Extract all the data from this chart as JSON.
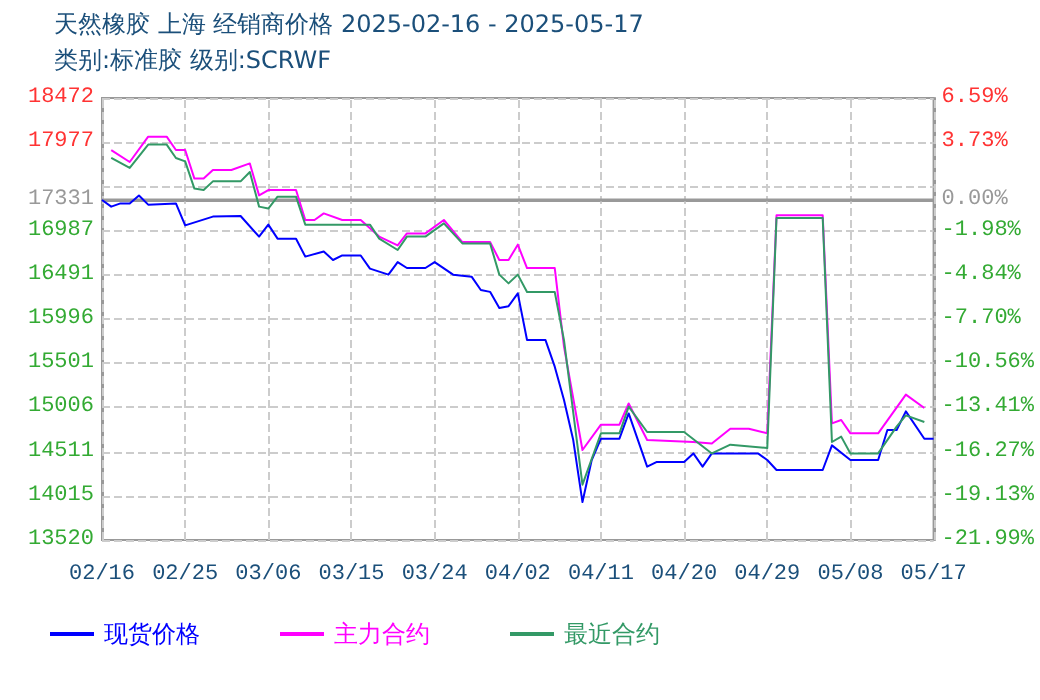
{
  "chart_data": {
    "type": "line",
    "title": "天然橡胶 上海 经销商价格 2025-02-16 - 2025-05-17",
    "subtitle": "类别:标准胶 级别:SCRWF",
    "xlim": [
      "2025-02-16",
      "2025-05-17"
    ],
    "xticks": [
      {
        "value": "2025-02-16",
        "label": "02/16"
      },
      {
        "value": "2025-02-25",
        "label": "02/25"
      },
      {
        "value": "2025-03-06",
        "label": "03/06"
      },
      {
        "value": "2025-03-15",
        "label": "03/15"
      },
      {
        "value": "2025-03-24",
        "label": "03/24"
      },
      {
        "value": "2025-04-02",
        "label": "04/02"
      },
      {
        "value": "2025-04-11",
        "label": "04/11"
      },
      {
        "value": "2025-04-20",
        "label": "04/20"
      },
      {
        "value": "2025-04-29",
        "label": "04/29"
      },
      {
        "value": "2025-05-08",
        "label": "05/08"
      },
      {
        "value": "2025-05-17",
        "label": "05/17"
      }
    ],
    "ylim": [
      13520,
      18472
    ],
    "yticks": [
      13520,
      14015,
      14511,
      15006,
      15501,
      15996,
      16491,
      16987,
      17331,
      {
        "value": 17482,
        "label": null
      },
      17977,
      18472
    ],
    "y2lim": [
      -21.99,
      6.59
    ],
    "y2ticks": [
      {
        "value": -21.99,
        "label": "-21.99%"
      },
      {
        "value": -19.13,
        "label": "-19.13%"
      },
      {
        "value": -16.27,
        "label": "-16.27%"
      },
      {
        "value": -13.41,
        "label": "-13.41%"
      },
      {
        "value": -10.56,
        "label": "-10.56%"
      },
      {
        "value": -7.7,
        "label": "-7.70%"
      },
      {
        "value": -4.84,
        "label": "-4.84%"
      },
      {
        "value": -1.98,
        "label": "-1.98%"
      },
      {
        "value": 0,
        "label": "0.00%"
      },
      {
        "value": 3.73,
        "label": "3.73%"
      },
      {
        "value": 6.59,
        "label": "6.59%"
      }
    ],
    "ref_lines": [
      {
        "axis": "y",
        "value": 17331,
        "color": "#999999"
      }
    ],
    "grid": true,
    "legend": "bottom",
    "marker": "none",
    "line_style": "solid",
    "series": [
      {
        "name": "现货价格",
        "color": "#0000ff",
        "x": [
          "2025-02-16",
          "2025-02-17",
          "2025-02-18",
          "2025-02-19",
          "2025-02-20",
          "2025-02-21",
          "2025-02-24",
          "2025-02-25",
          "2025-02-28",
          "2025-03-03",
          "2025-03-05",
          "2025-03-06",
          "2025-03-07",
          "2025-03-09",
          "2025-03-10",
          "2025-03-12",
          "2025-03-13",
          "2025-03-14",
          "2025-03-16",
          "2025-03-17",
          "2025-03-19",
          "2025-03-20",
          "2025-03-21",
          "2025-03-23",
          "2025-03-24",
          "2025-03-26",
          "2025-03-28",
          "2025-03-29",
          "2025-03-30",
          "2025-03-31",
          "2025-04-01",
          "2025-04-02",
          "2025-04-03",
          "2025-04-05",
          "2025-04-06",
          "2025-04-07",
          "2025-04-08",
          "2025-04-09",
          "2025-04-10",
          "2025-04-11",
          "2025-04-13",
          "2025-04-14",
          "2025-04-16",
          "2025-04-17",
          "2025-04-20",
          "2025-04-21",
          "2025-04-22",
          "2025-04-23",
          "2025-04-28",
          "2025-04-29",
          "2025-04-30",
          "2025-05-05",
          "2025-05-06",
          "2025-05-08",
          "2025-05-11",
          "2025-05-12",
          "2025-05-13",
          "2025-05-14",
          "2025-05-16",
          "2025-05-17"
        ],
        "values": [
          17329,
          17255,
          17291,
          17291,
          17380,
          17277,
          17291,
          17045,
          17143,
          17150,
          16919,
          17053,
          16896,
          16896,
          16695,
          16753,
          16657,
          16708,
          16708,
          16560,
          16493,
          16634,
          16567,
          16567,
          16634,
          16493,
          16470,
          16321,
          16300,
          16119,
          16140,
          16283,
          15760,
          15760,
          15462,
          15088,
          14640,
          13945,
          14416,
          14655,
          14655,
          14938,
          14342,
          14393,
          14393,
          14490,
          14342,
          14490,
          14490,
          14416,
          14304,
          14304,
          14580,
          14416,
          14416,
          14752,
          14752,
          14961,
          14655,
          14655
        ]
      },
      {
        "name": "主力合约",
        "color": "#ff00ff",
        "x": [
          "2025-02-17",
          "2025-02-19",
          "2025-02-21",
          "2025-02-23",
          "2025-02-24",
          "2025-02-25",
          "2025-02-26",
          "2025-02-27",
          "2025-02-28",
          "2025-03-02",
          "2025-03-04",
          "2025-03-05",
          "2025-03-06",
          "2025-03-09",
          "2025-03-10",
          "2025-03-11",
          "2025-03-12",
          "2025-03-14",
          "2025-03-16",
          "2025-03-18",
          "2025-03-20",
          "2025-03-21",
          "2025-03-23",
          "2025-03-25",
          "2025-03-27",
          "2025-03-30",
          "2025-03-31",
          "2025-04-01",
          "2025-04-02",
          "2025-04-03",
          "2025-04-04",
          "2025-04-06",
          "2025-04-07",
          "2025-04-09",
          "2025-04-11",
          "2025-04-13",
          "2025-04-14",
          "2025-04-16",
          "2025-04-21",
          "2025-04-23",
          "2025-04-25",
          "2025-04-27",
          "2025-04-29",
          "2025-04-30",
          "2025-05-05",
          "2025-05-06",
          "2025-05-07",
          "2025-05-08",
          "2025-05-11",
          "2025-05-14",
          "2025-05-16"
        ],
        "values": [
          17889,
          17755,
          18039,
          18039,
          17889,
          17889,
          17569,
          17569,
          17665,
          17665,
          17739,
          17381,
          17441,
          17441,
          17105,
          17105,
          17179,
          17105,
          17105,
          16919,
          16820,
          16955,
          16955,
          17105,
          16858,
          16858,
          16657,
          16657,
          16829,
          16567,
          16567,
          16567,
          15686,
          14528,
          14812,
          14812,
          15050,
          14640,
          14618,
          14602,
          14767,
          14767,
          14715,
          17157,
          17157,
          14826,
          14864,
          14715,
          14715,
          15149,
          14999
        ]
      },
      {
        "name": "最近合约",
        "color": "#339966",
        "x": [
          "2025-02-17",
          "2025-02-19",
          "2025-02-21",
          "2025-02-23",
          "2025-02-24",
          "2025-02-25",
          "2025-02-26",
          "2025-02-27",
          "2025-02-28",
          "2025-03-03",
          "2025-03-04",
          "2025-03-05",
          "2025-03-06",
          "2025-03-07",
          "2025-03-09",
          "2025-03-10",
          "2025-03-17",
          "2025-03-18",
          "2025-03-20",
          "2025-03-21",
          "2025-03-23",
          "2025-03-25",
          "2025-03-27",
          "2025-03-30",
          "2025-03-31",
          "2025-04-01",
          "2025-04-02",
          "2025-04-03",
          "2025-04-04",
          "2025-04-06",
          "2025-04-07",
          "2025-04-09",
          "2025-04-11",
          "2025-04-13",
          "2025-04-14",
          "2025-04-16",
          "2025-04-20",
          "2025-04-23",
          "2025-04-25",
          "2025-04-29",
          "2025-04-30",
          "2025-05-05",
          "2025-05-06",
          "2025-05-07",
          "2025-05-08",
          "2025-05-11",
          "2025-05-13",
          "2025-05-14",
          "2025-05-16"
        ],
        "values": [
          17800,
          17688,
          17950,
          17950,
          17800,
          17762,
          17457,
          17441,
          17538,
          17538,
          17643,
          17255,
          17233,
          17367,
          17367,
          17053,
          17053,
          16896,
          16769,
          16919,
          16919,
          17068,
          16843,
          16843,
          16493,
          16395,
          16493,
          16298,
          16298,
          16298,
          15760,
          14140,
          14715,
          14715,
          15014,
          14730,
          14730,
          14490,
          14588,
          14550,
          17127,
          17127,
          14618,
          14678,
          14490,
          14490,
          14790,
          14916,
          14842
        ]
      }
    ]
  }
}
